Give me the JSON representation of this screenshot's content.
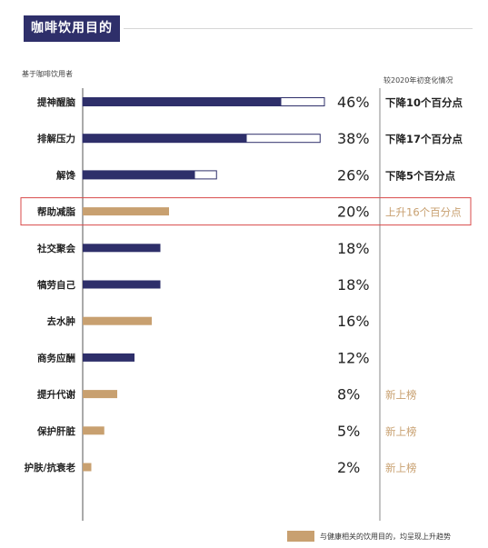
{
  "title": "咖啡饮用目的",
  "base_note": "基于咖啡饮用者",
  "change_header": "较2020年初变化情况",
  "legend_text": "与健康相关的饮用目的，均呈现上升趋势",
  "colors": {
    "navy": "#2e2f6a",
    "tan": "#c8a070",
    "highlight_border": "#d94a4a"
  },
  "chart_data": {
    "type": "bar",
    "orientation": "horizontal",
    "title": "咖啡饮用目的",
    "xlim": [
      0,
      100
    ],
    "categories": [
      "提神醒脑",
      "排解压力",
      "解馋",
      "帮助减脂",
      "社交聚会",
      "犒劳自己",
      "去水肿",
      "商务应酬",
      "提升代谢",
      "保护肝脏",
      "护肤/抗衰老"
    ],
    "values": [
      46,
      38,
      26,
      20,
      18,
      18,
      16,
      12,
      8,
      5,
      2
    ],
    "value_labels": [
      "46%",
      "38%",
      "26%",
      "20%",
      "18%",
      "18%",
      "16%",
      "12%",
      "8%",
      "5%",
      "2%"
    ],
    "previous_values": [
      56,
      55,
      31,
      null,
      null,
      null,
      null,
      null,
      null,
      null,
      null
    ],
    "health_related": [
      false,
      false,
      false,
      true,
      false,
      false,
      true,
      false,
      true,
      true,
      true
    ],
    "changes": [
      "下降10个百分点",
      "下降17个百分点",
      "下降5个百分点",
      "上升16个百分点",
      "",
      "",
      "",
      "",
      "新上榜",
      "新上榜",
      "新上榜"
    ],
    "highlighted_category": "帮助减脂",
    "legend": {
      "label": "与健康相关的饮用目的，均呈现上升趋势",
      "position": "bottom-right"
    }
  }
}
